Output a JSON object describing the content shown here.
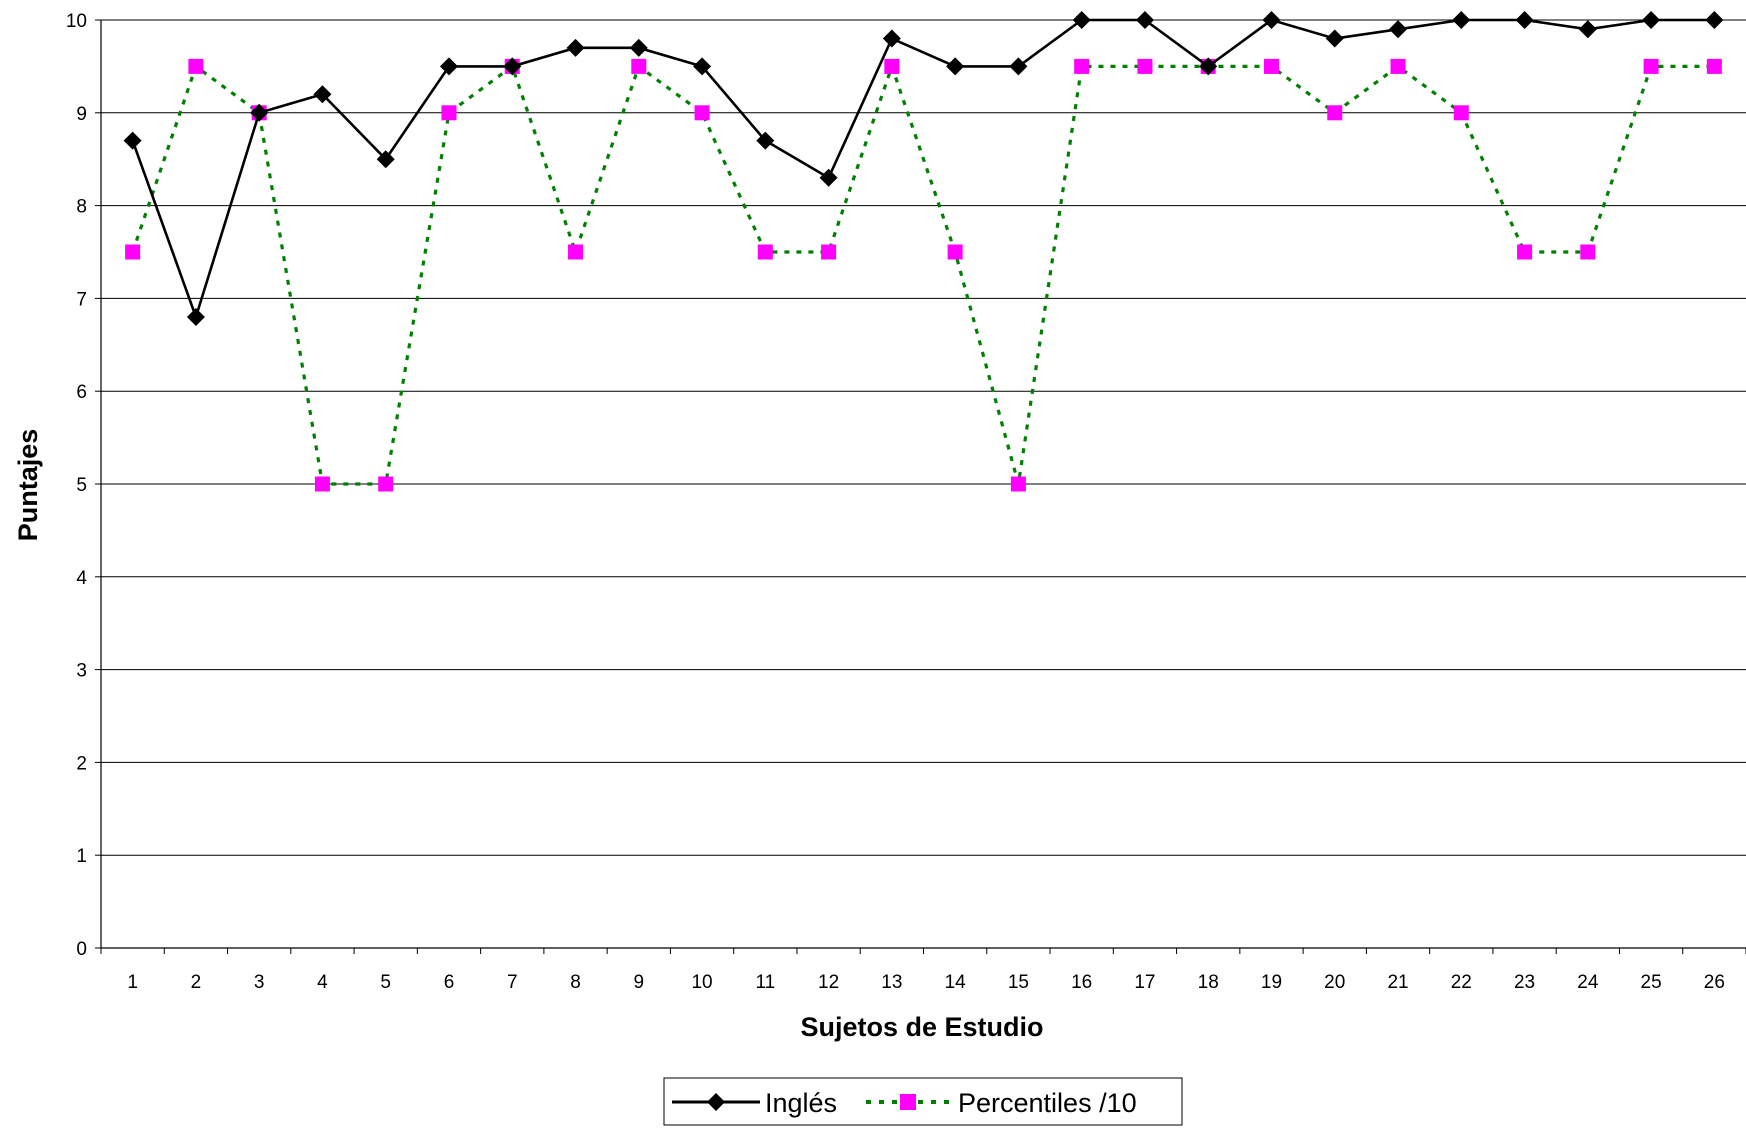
{
  "chart_data": {
    "type": "line",
    "title": "",
    "xlabel": "Sujetos de Estudio",
    "ylabel": "Puntajes",
    "ylim": [
      0,
      10
    ],
    "yticks": [
      0,
      1,
      2,
      3,
      4,
      5,
      6,
      7,
      8,
      9,
      10
    ],
    "categories": [
      "1",
      "2",
      "3",
      "4",
      "5",
      "6",
      "7",
      "8",
      "9",
      "10",
      "11",
      "12",
      "13",
      "14",
      "15",
      "16",
      "17",
      "18",
      "19",
      "20",
      "21",
      "22",
      "23",
      "24",
      "25",
      "26"
    ],
    "grid": "horizontal",
    "legend_position": "bottom-center",
    "series": [
      {
        "name": "Inglés",
        "color": "#000000",
        "marker": "diamond",
        "line_style": "solid",
        "values": [
          8.7,
          6.8,
          9.0,
          9.2,
          8.5,
          9.5,
          9.5,
          9.7,
          9.7,
          9.5,
          8.7,
          8.3,
          9.8,
          9.5,
          9.5,
          10.0,
          10.0,
          9.5,
          10.0,
          9.8,
          9.9,
          10.0,
          10.0,
          9.9,
          10.0,
          10.0
        ]
      },
      {
        "name": "Percentiles /10",
        "color": "#ff00ff",
        "line_color": "#008000",
        "marker": "square",
        "line_style": "dotted",
        "values": [
          7.5,
          9.5,
          9.0,
          5.0,
          5.0,
          9.0,
          9.5,
          7.5,
          9.5,
          9.0,
          7.5,
          7.5,
          9.5,
          7.5,
          5.0,
          9.5,
          9.5,
          9.5,
          9.5,
          9.0,
          9.5,
          9.0,
          7.5,
          7.5,
          9.5,
          9.5
        ]
      }
    ]
  }
}
